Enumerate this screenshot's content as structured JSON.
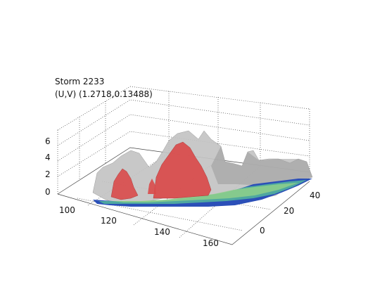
{
  "chart_data": {
    "type": "surface",
    "title": "Storm 2233",
    "subtitle": "(U,V) (1.2718,0.13488)",
    "xlabel": "",
    "ylabel": "",
    "zlabel": "",
    "x_ticks": [
      100,
      120,
      140,
      160
    ],
    "y_ticks": [
      0,
      20,
      40
    ],
    "z_ticks": [
      0,
      2,
      4,
      6
    ],
    "xlim": [
      92,
      166
    ],
    "ylim": [
      -10,
      46
    ],
    "zlim": [
      0,
      7
    ],
    "grid": true,
    "colors": {
      "storm_core": "#d94a4a",
      "surface": "#bfbfbf",
      "low_band_blue": "#2b4fb8",
      "low_band_teal": "#4ea7a0",
      "low_band_green": "#8fd08a"
    },
    "series": [
      {
        "values_description_note": "",
        "peaks": [
          {
            "x": 112,
            "y": 18,
            "z": 2.6
          },
          {
            "x": 124,
            "y": 26,
            "z": 4.6
          },
          {
            "x": 135,
            "y": 30,
            "z": 3.8
          },
          {
            "x": 152,
            "y": 35,
            "z": 1.4
          }
        ]
      }
    ]
  }
}
